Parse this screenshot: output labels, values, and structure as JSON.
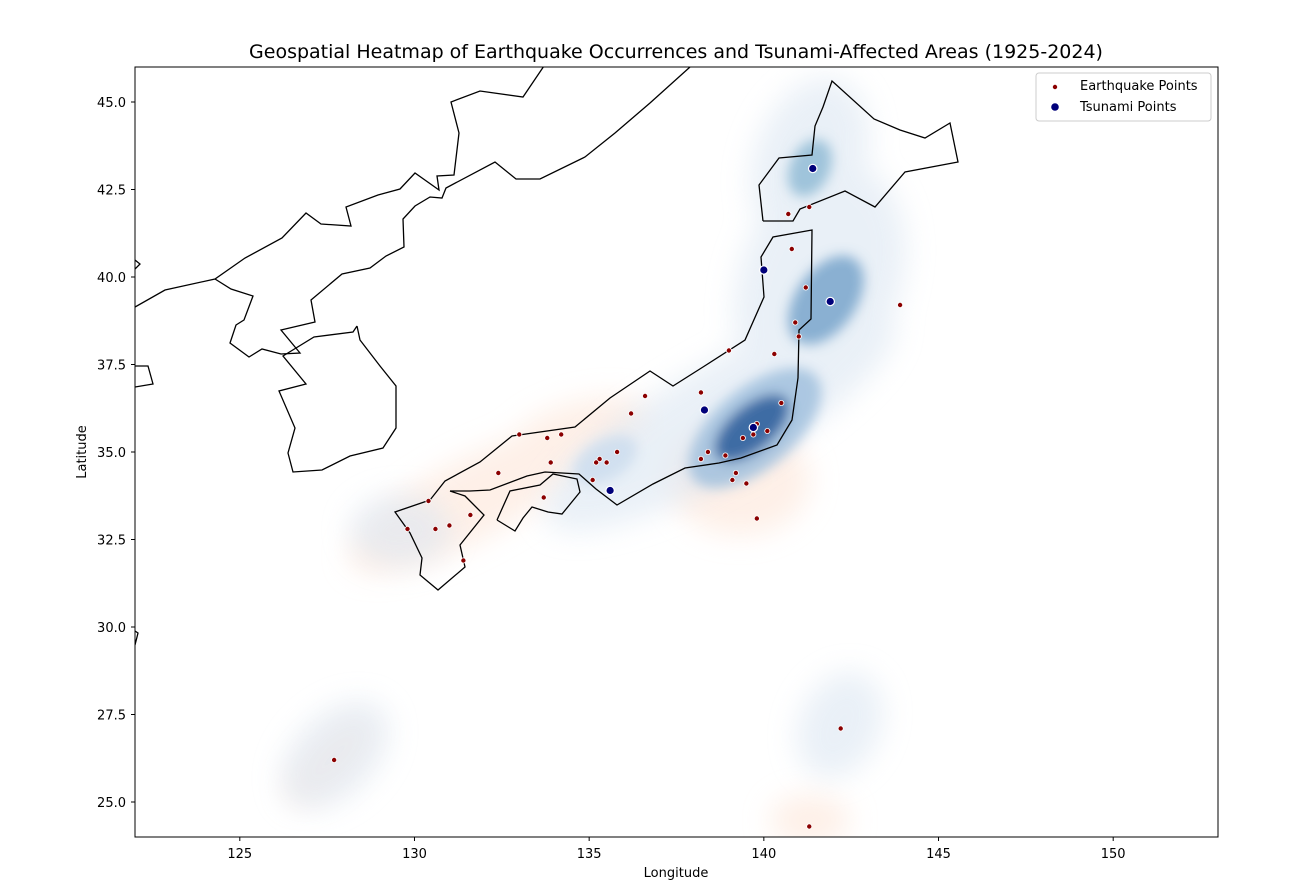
{
  "chart_data": {
    "type": "scatter",
    "title": "Geospatial Heatmap of Earthquake Occurrences and Tsunami-Affected Areas (1925-2024)",
    "xlabel": "Longitude",
    "ylabel": "Latitude",
    "xlim": [
      122,
      153
    ],
    "ylim": [
      24,
      46
    ],
    "x_ticks": [
      125,
      130,
      135,
      140,
      145,
      150
    ],
    "y_ticks": [
      25.0,
      27.5,
      30.0,
      32.5,
      35.0,
      37.5,
      40.0,
      42.5,
      45.0
    ],
    "x_tick_labels": [
      "125",
      "130",
      "135",
      "140",
      "145",
      "150"
    ],
    "y_tick_labels": [
      "25.0",
      "27.5",
      "30.0",
      "32.5",
      "35.0",
      "37.5",
      "40.0",
      "42.5",
      "45.0"
    ],
    "grid": false,
    "legend_position": "top-right",
    "colors": {
      "earthquake": "#8b0000",
      "tsunami": "#00007a",
      "quake_density": "#f8a47e",
      "tsunami_density": "#1f4f8f",
      "coastline": "#000000"
    },
    "series": [
      {
        "name": "Earthquake Points",
        "marker": "small-dot",
        "points": [
          [
            141.3,
            42.0
          ],
          [
            140.7,
            41.8
          ],
          [
            140.8,
            40.8
          ],
          [
            141.2,
            39.7
          ],
          [
            141.0,
            38.3
          ],
          [
            139.0,
            37.9
          ],
          [
            138.2,
            36.7
          ],
          [
            136.6,
            36.6
          ],
          [
            136.2,
            36.1
          ],
          [
            139.4,
            35.4
          ],
          [
            140.1,
            35.6
          ],
          [
            139.7,
            35.5
          ],
          [
            138.4,
            35.0
          ],
          [
            138.2,
            34.8
          ],
          [
            138.9,
            34.9
          ],
          [
            139.2,
            34.4
          ],
          [
            139.1,
            34.2
          ],
          [
            139.5,
            34.1
          ],
          [
            139.8,
            33.1
          ],
          [
            135.8,
            35.0
          ],
          [
            135.5,
            34.7
          ],
          [
            135.3,
            34.8
          ],
          [
            135.1,
            34.2
          ],
          [
            134.2,
            35.5
          ],
          [
            133.8,
            35.4
          ],
          [
            133.0,
            35.5
          ],
          [
            133.9,
            34.7
          ],
          [
            132.4,
            34.4
          ],
          [
            133.7,
            33.7
          ],
          [
            131.6,
            33.2
          ],
          [
            131.0,
            32.9
          ],
          [
            130.6,
            32.8
          ],
          [
            130.4,
            33.6
          ],
          [
            131.4,
            31.9
          ],
          [
            129.8,
            32.8
          ],
          [
            140.9,
            38.7
          ],
          [
            143.9,
            39.2
          ],
          [
            142.2,
            27.1
          ],
          [
            127.7,
            26.2
          ],
          [
            141.3,
            24.3
          ],
          [
            140.5,
            36.4
          ],
          [
            139.8,
            35.8
          ],
          [
            140.3,
            37.8
          ],
          [
            135.2,
            34.7
          ]
        ]
      },
      {
        "name": "Tsunami Points",
        "marker": "dot",
        "points": [
          [
            141.4,
            43.1
          ],
          [
            140.0,
            40.2
          ],
          [
            141.9,
            39.3
          ],
          [
            138.3,
            36.2
          ],
          [
            139.7,
            35.7
          ],
          [
            135.6,
            33.9
          ]
        ]
      }
    ]
  },
  "legend": {
    "earthquake_label": "Earthquake Points",
    "tsunami_label": "Tsunami Points"
  }
}
